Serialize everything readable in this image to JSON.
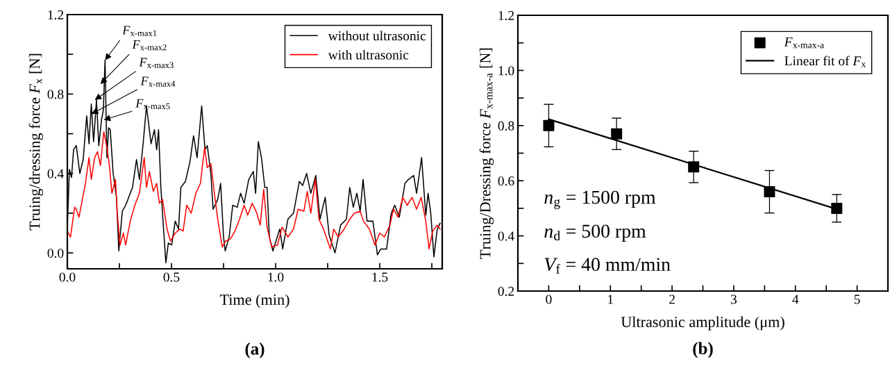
{
  "chart_data": [
    {
      "type": "line",
      "title": "(a)",
      "xlabel": "Time (min)",
      "ylabel": "Truing/dressing force F$_{x}$ [N]",
      "xlim": [
        0,
        1.8
      ],
      "ylim": [
        -0.08,
        1.2
      ],
      "xticks": [
        {
          "value": 0,
          "label": "0.0"
        },
        {
          "value": 0.25,
          "label": null
        },
        0.5,
        {
          "value": 0.75,
          "label": null
        },
        {
          "value": 1,
          "label": "1.0"
        },
        {
          "value": 1.25,
          "label": null
        },
        1.5,
        {
          "value": 1.75,
          "label": null
        }
      ],
      "yticks": [
        {
          "value": 0,
          "label": "0.0"
        },
        {
          "value": 0.2,
          "label": null
        },
        0.4,
        {
          "value": 0.6,
          "label": null
        },
        0.8,
        {
          "value": 1.0,
          "label": null
        },
        1.2
      ],
      "legend": "top right",
      "series": [
        {
          "name": "without ultrasonic",
          "color": "#000000",
          "x": [
            0,
            0.01,
            0.02,
            0.03,
            0.043,
            0.06,
            0.076,
            0.093,
            0.104,
            0.115,
            0.126,
            0.14,
            0.151,
            0.164,
            0.173,
            0.181,
            0.19,
            0.198,
            0.206,
            0.22,
            0.236,
            0.247,
            0.264,
            0.28,
            0.313,
            0.332,
            0.346,
            0.363,
            0.38,
            0.402,
            0.418,
            0.429,
            0.438,
            0.449,
            0.462,
            0.473,
            0.485,
            0.501,
            0.518,
            0.534,
            0.545,
            0.567,
            0.589,
            0.606,
            0.623,
            0.645,
            0.661,
            0.672,
            0.689,
            0.7,
            0.722,
            0.736,
            0.75,
            0.758,
            0.777,
            0.794,
            0.816,
            0.832,
            0.849,
            0.871,
            0.893,
            0.904,
            0.917,
            0.932,
            0.948,
            0.959,
            0.97,
            0.987,
            1.02,
            1.034,
            1.059,
            1.086,
            1.114,
            1.13,
            1.149,
            1.169,
            1.193,
            1.213,
            1.238,
            1.257,
            1.285,
            1.312,
            1.34,
            1.356,
            1.373,
            1.39,
            1.406,
            1.42,
            1.439,
            1.467,
            1.489,
            1.505,
            1.533,
            1.555,
            1.572,
            1.594,
            1.621,
            1.638,
            1.663,
            1.677,
            1.701,
            1.721,
            1.732,
            1.745,
            1.76,
            1.776,
            1.79
          ],
          "values": [
            0.13,
            0.42,
            0.38,
            0.52,
            0.54,
            0.4,
            0.47,
            0.69,
            0.55,
            0.75,
            0.56,
            0.77,
            0.54,
            0.67,
            0.72,
            0.97,
            0.48,
            0.63,
            0.62,
            0.4,
            0.28,
            0.01,
            0.21,
            0.24,
            0.33,
            0.47,
            0.37,
            0.54,
            0.74,
            0.55,
            0.62,
            0.52,
            0.62,
            0.33,
            0.12,
            -0.05,
            0.05,
            0.04,
            0.16,
            0.12,
            0.33,
            0.36,
            0.46,
            0.59,
            0.48,
            0.74,
            0.52,
            0.54,
            0.4,
            0.22,
            0.27,
            0.35,
            0.08,
            0.01,
            0.08,
            0.24,
            0.23,
            0.3,
            0.25,
            0.37,
            0.41,
            0.3,
            0.56,
            0.48,
            0.33,
            0.33,
            0.08,
            0.01,
            0.12,
            0.02,
            0.17,
            0.2,
            0.36,
            0.34,
            0.4,
            0.3,
            0.39,
            0.17,
            0.28,
            0.09,
            0.0,
            0.14,
            0.17,
            0.33,
            0.23,
            0.3,
            0.21,
            0.37,
            0.16,
            0.16,
            -0.01,
            0.02,
            0.02,
            0.2,
            0.24,
            0.18,
            0.35,
            0.37,
            0.39,
            0.3,
            0.48,
            0.19,
            0.3,
            0.2,
            -0.02,
            0.12,
            0.15
          ]
        },
        {
          "name": "with ultrasonic",
          "color": "#ff0000",
          "x": [
            0,
            0.015,
            0.035,
            0.043,
            0.056,
            0.087,
            0.104,
            0.115,
            0.131,
            0.145,
            0.159,
            0.175,
            0.192,
            0.203,
            0.214,
            0.231,
            0.239,
            0.253,
            0.269,
            0.28,
            0.302,
            0.324,
            0.346,
            0.369,
            0.38,
            0.394,
            0.413,
            0.429,
            0.442,
            0.457,
            0.479,
            0.495,
            0.518,
            0.54,
            0.556,
            0.573,
            0.595,
            0.617,
            0.639,
            0.659,
            0.672,
            0.689,
            0.705,
            0.722,
            0.744,
            0.76,
            0.783,
            0.805,
            0.827,
            0.849,
            0.866,
            0.888,
            0.91,
            0.926,
            0.943,
            0.959,
            0.981,
            1.009,
            1.031,
            1.059,
            1.086,
            1.108,
            1.136,
            1.152,
            1.169,
            1.191,
            1.208,
            1.23,
            1.263,
            1.279,
            1.301,
            1.329,
            1.356,
            1.378,
            1.406,
            1.422,
            1.45,
            1.477,
            1.5,
            1.522,
            1.549,
            1.566,
            1.588,
            1.61,
            1.632,
            1.655,
            1.677,
            1.699,
            1.721,
            1.737,
            1.754,
            1.776,
            1.79
          ],
          "values": [
            0.11,
            0.08,
            0.23,
            0.22,
            0.18,
            0.35,
            0.48,
            0.37,
            0.48,
            0.51,
            0.44,
            0.61,
            0.52,
            0.43,
            0.3,
            0.37,
            0.21,
            0.04,
            0.1,
            0.04,
            0.16,
            0.24,
            0.3,
            0.48,
            0.33,
            0.41,
            0.31,
            0.35,
            0.25,
            0.27,
            0.12,
            0.06,
            0.1,
            0.12,
            0.11,
            0.24,
            0.2,
            0.3,
            0.35,
            0.53,
            0.43,
            0.45,
            0.31,
            0.17,
            0.03,
            0.06,
            0.07,
            0.11,
            0.17,
            0.24,
            0.19,
            0.25,
            0.2,
            0.14,
            0.32,
            0.13,
            0.03,
            0.04,
            0.13,
            0.08,
            0.12,
            0.22,
            0.21,
            0.31,
            0.2,
            0.37,
            0.17,
            0.12,
            0.02,
            0.12,
            0.08,
            0.12,
            0.17,
            0.2,
            0.21,
            0.16,
            0.12,
            0.04,
            0.1,
            0.08,
            0.14,
            0.22,
            0.18,
            0.28,
            0.24,
            0.28,
            0.22,
            0.28,
            0.16,
            0.02,
            0.11,
            0.14,
            0.12
          ]
        }
      ],
      "annotations": [
        {
          "text": "F$_{x-max1}$",
          "x": 0.181,
          "y": 0.97
        },
        {
          "text": "F$_{x-max2}$",
          "x": 0.159,
          "y": 0.85
        },
        {
          "text": "F$_{x-max3}$",
          "x": 0.132,
          "y": 0.77
        },
        {
          "text": "F$_{x-max4}$",
          "x": 0.116,
          "y": 0.7
        },
        {
          "text": "F$_{x-max5}$",
          "x": 0.175,
          "y": 0.67
        }
      ]
    },
    {
      "type": "scatter",
      "title": "(b)",
      "xlabel": "Ultrasonic amplitude (μm)",
      "ylabel": "Truing/Dressing force F$_{x-max-a}$ [N]",
      "xlim": [
        -0.5,
        5.5
      ],
      "ylim": [
        0.2,
        1.2
      ],
      "xticks": [
        0,
        {
          "value": 0.5,
          "label": null
        },
        1,
        {
          "value": 1.5,
          "label": null
        },
        2,
        {
          "value": 2.5,
          "label": null
        },
        3,
        {
          "value": 3.5,
          "label": null
        },
        4,
        {
          "value": 4.5,
          "label": null
        },
        5
      ],
      "yticks": [
        0.2,
        {
          "value": 0.3,
          "label": null
        },
        0.4,
        {
          "value": 0.5,
          "label": null
        },
        0.6,
        {
          "value": 0.7,
          "label": null
        },
        0.8,
        {
          "value": 0.9,
          "label": null
        },
        {
          "value": 1.0,
          "label": "1.0"
        },
        {
          "value": 1.1,
          "label": null
        },
        1.2
      ],
      "legend": "top right",
      "series": [
        {
          "name": "F$_{x-max-a}$",
          "type": "scatter",
          "marker": "square",
          "color": "#000000",
          "x": [
            0,
            1.1,
            2.35,
            3.58,
            4.67
          ],
          "values": [
            0.8,
            0.77,
            0.65,
            0.56,
            0.5
          ],
          "errors": [
            0.077,
            0.057,
            0.057,
            0.077,
            0.05
          ]
        },
        {
          "name": "Linear fit of F$_{x}$",
          "type": "line",
          "color": "#000000",
          "x": [
            0,
            4.67
          ],
          "values": [
            0.823,
            0.497
          ]
        }
      ],
      "annotations": [
        "n$_{g}$ = 1500 rpm",
        "n$_{d}$ = 500 rpm",
        "V$_{f}$ = 40 mm/min"
      ]
    }
  ]
}
